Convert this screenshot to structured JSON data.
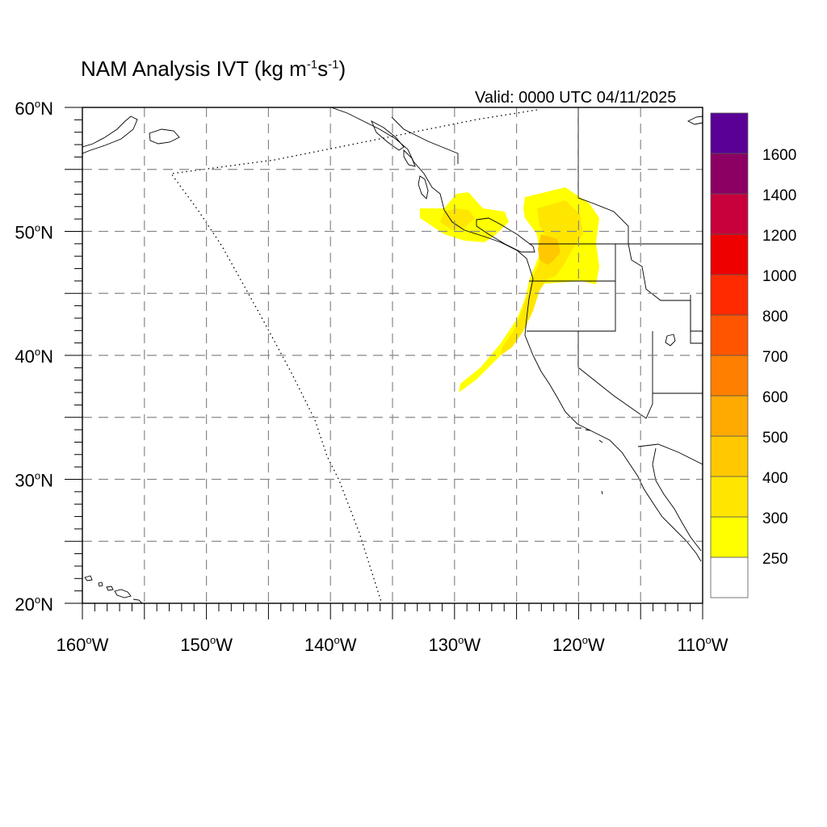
{
  "title": {
    "main": "NAM Analysis IVT (kg m",
    "exp1": "-1",
    "mid": "s",
    "exp2": "-1",
    "end": ")"
  },
  "valid_text": "Valid: 0000 UTC 04/11/2025",
  "map": {
    "lon_min": -160,
    "lon_max": -110,
    "lat_min": 20,
    "lat_max": 60,
    "lat_ticks": [
      {
        "value": 20,
        "label": "20",
        "hemi": "N"
      },
      {
        "value": 30,
        "label": "30",
        "hemi": "N"
      },
      {
        "value": 40,
        "label": "40",
        "hemi": "N"
      },
      {
        "value": 50,
        "label": "50",
        "hemi": "N"
      },
      {
        "value": 60,
        "label": "60",
        "hemi": "N"
      }
    ],
    "lon_ticks": [
      {
        "value": -160,
        "label": "160",
        "hemi": "W"
      },
      {
        "value": -150,
        "label": "150",
        "hemi": "W"
      },
      {
        "value": -140,
        "label": "140",
        "hemi": "W"
      },
      {
        "value": -130,
        "label": "130",
        "hemi": "W"
      },
      {
        "value": -120,
        "label": "120",
        "hemi": "W"
      },
      {
        "value": -110,
        "label": "110",
        "hemi": "W"
      }
    ],
    "grid_interval_deg": 5,
    "degree_symbol": "o",
    "grid": true,
    "colors": {
      "coastline": "#000000",
      "grid": "#888888",
      "ivt_250": "#ffff00",
      "ivt_300": "#ffe600",
      "ivt_400": "#ffc800"
    }
  },
  "colorbar": {
    "levels": [
      "250",
      "300",
      "400",
      "500",
      "600",
      "700",
      "800",
      "1000",
      "1200",
      "1400",
      "1600"
    ],
    "colors": [
      "#ffffff",
      "#ffff00",
      "#ffe600",
      "#ffc800",
      "#ffaa00",
      "#ff8000",
      "#ff5500",
      "#ff2a00",
      "#ee0000",
      "#c8003c",
      "#8c0064",
      "#5a0096"
    ]
  }
}
